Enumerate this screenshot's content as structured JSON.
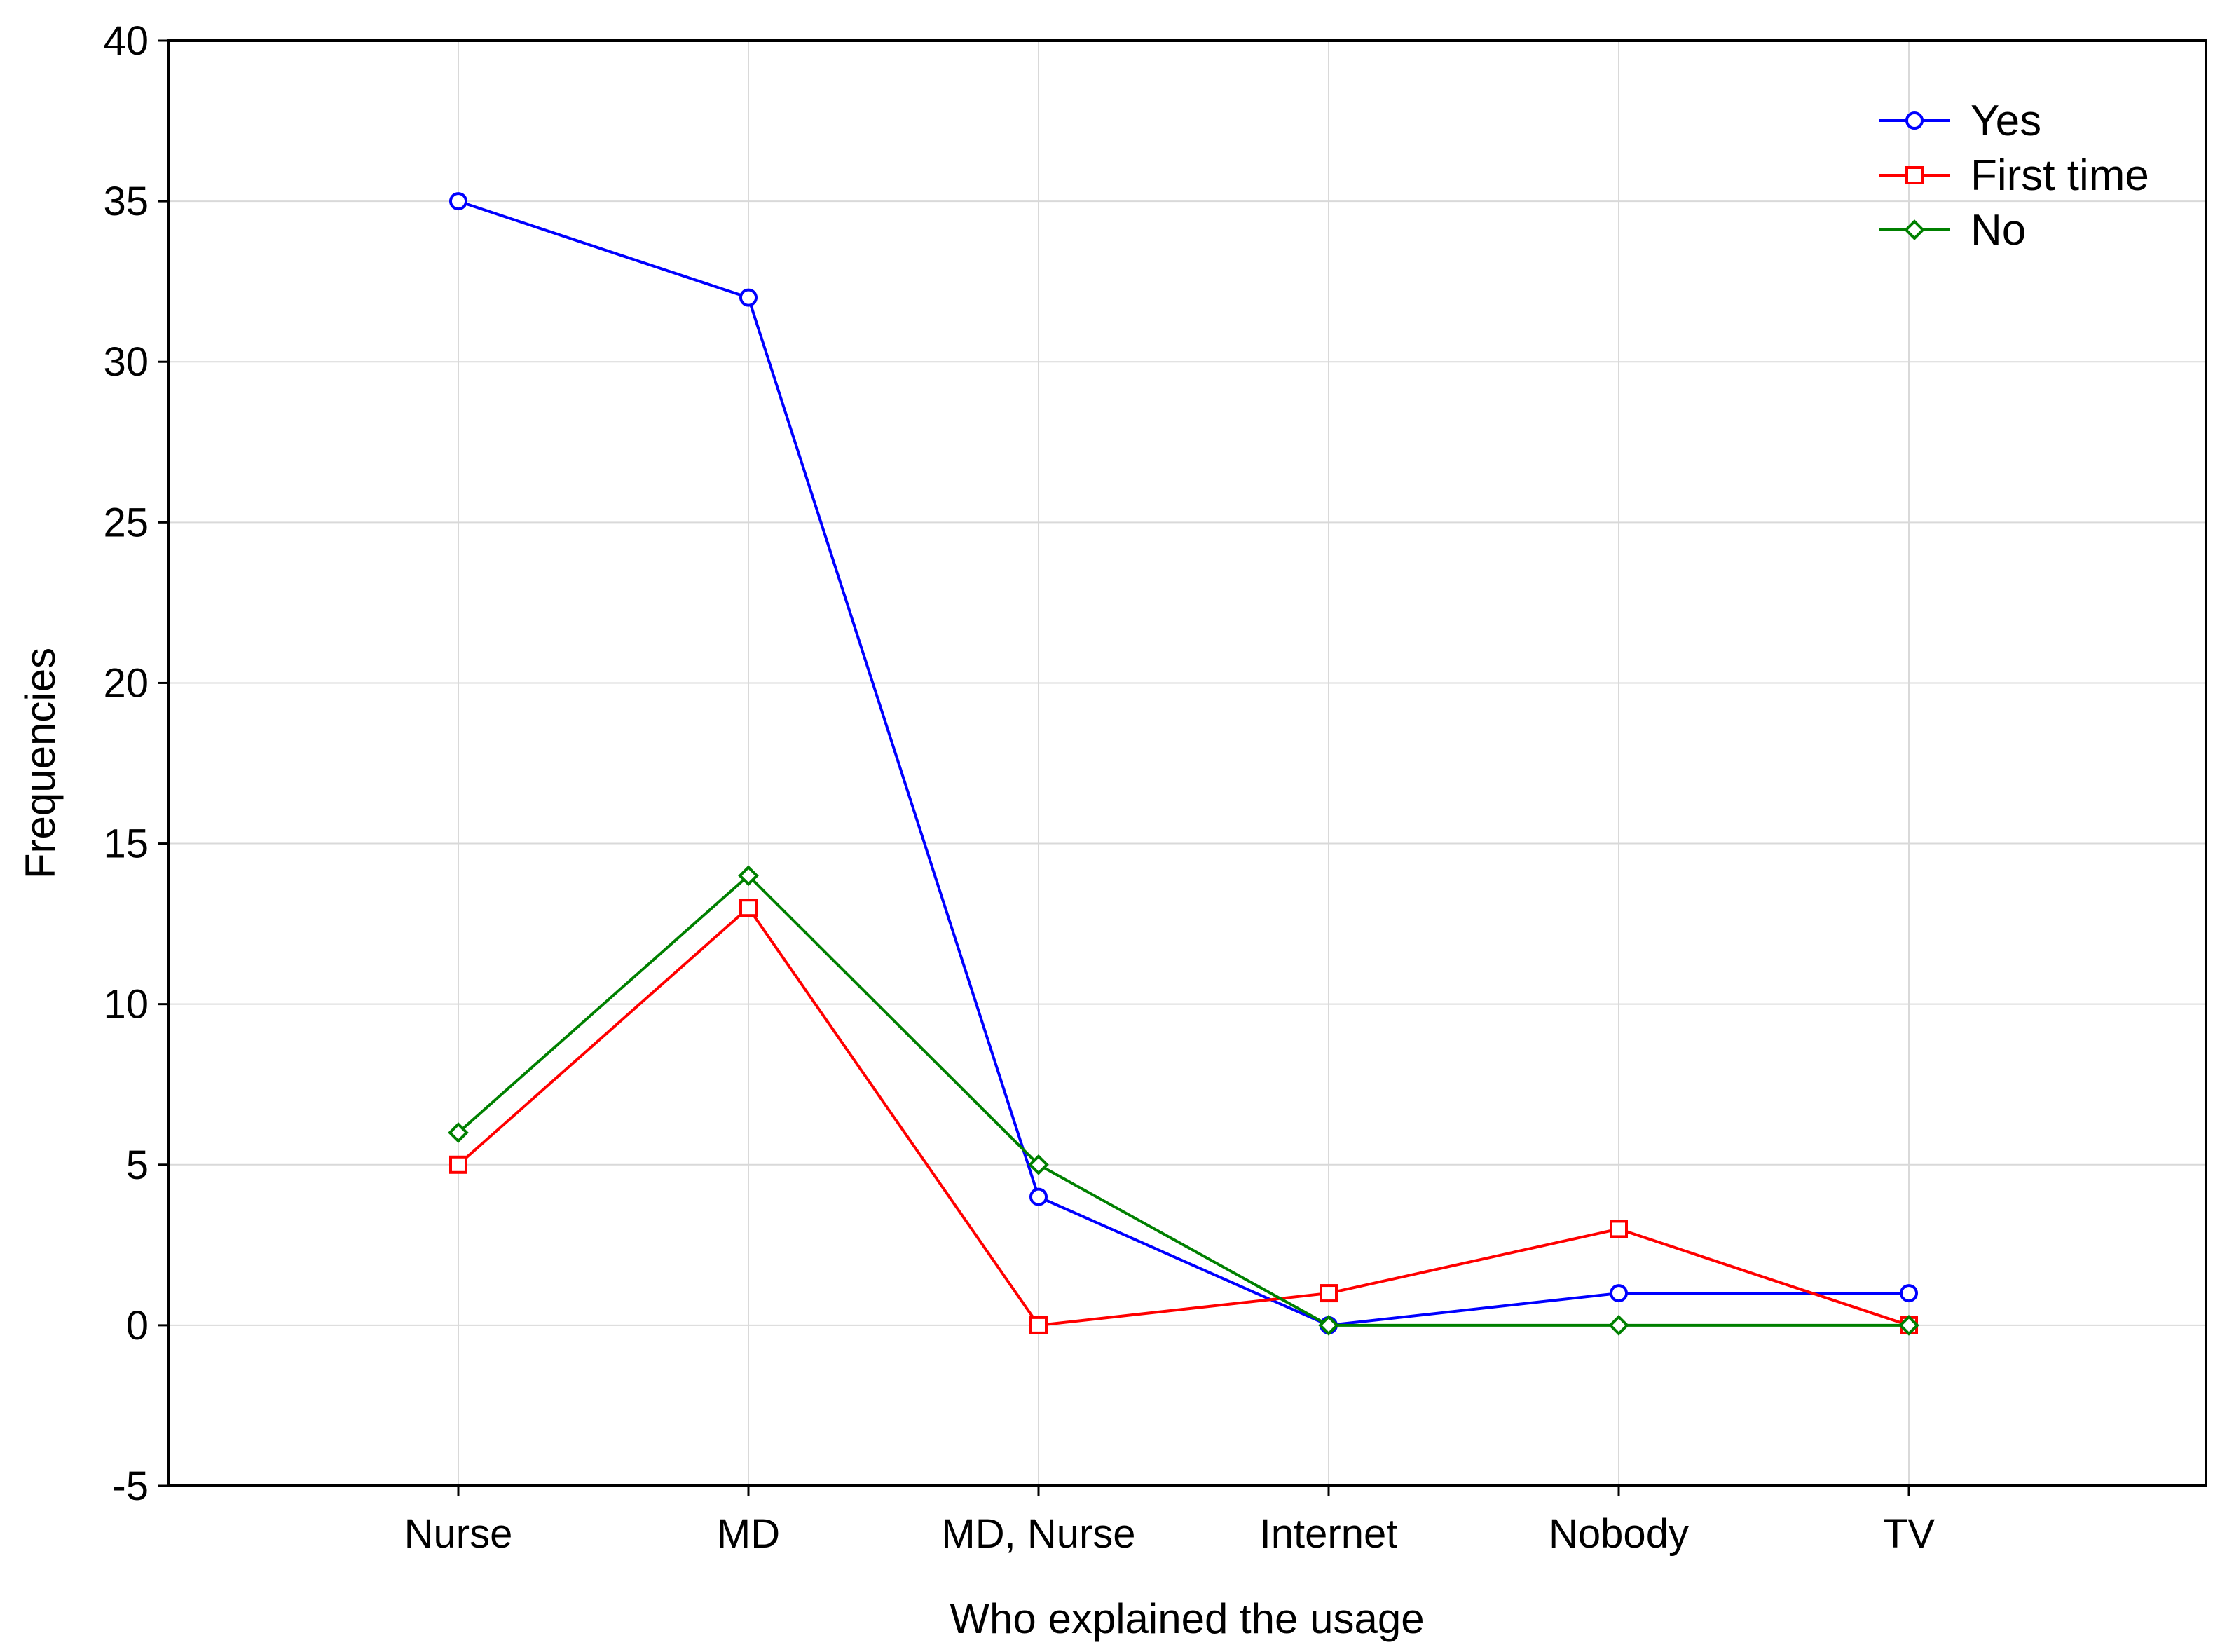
{
  "chart_data": {
    "type": "line",
    "title": "",
    "xlabel": "Who explained the usage",
    "ylabel": "Frequencies",
    "categories": [
      "Nurse",
      "MD",
      "MD, Nurse",
      "Internet",
      "Nobody",
      "TV"
    ],
    "ylim": [
      -5,
      40
    ],
    "yticks": [
      40,
      35,
      30,
      25,
      20,
      15,
      10,
      5,
      0,
      -5
    ],
    "grid": true,
    "legend_position": "top-right",
    "series": [
      {
        "name": "Yes",
        "color": "#0000ff",
        "marker": "circle",
        "values": [
          35,
          32,
          4,
          0,
          1,
          1
        ]
      },
      {
        "name": "First time",
        "color": "#ff0000",
        "marker": "square",
        "values": [
          5,
          13,
          0,
          1,
          3,
          0
        ]
      },
      {
        "name": "No",
        "color": "#008000",
        "marker": "diamond",
        "values": [
          6,
          14,
          5,
          0,
          0,
          0
        ]
      }
    ]
  }
}
